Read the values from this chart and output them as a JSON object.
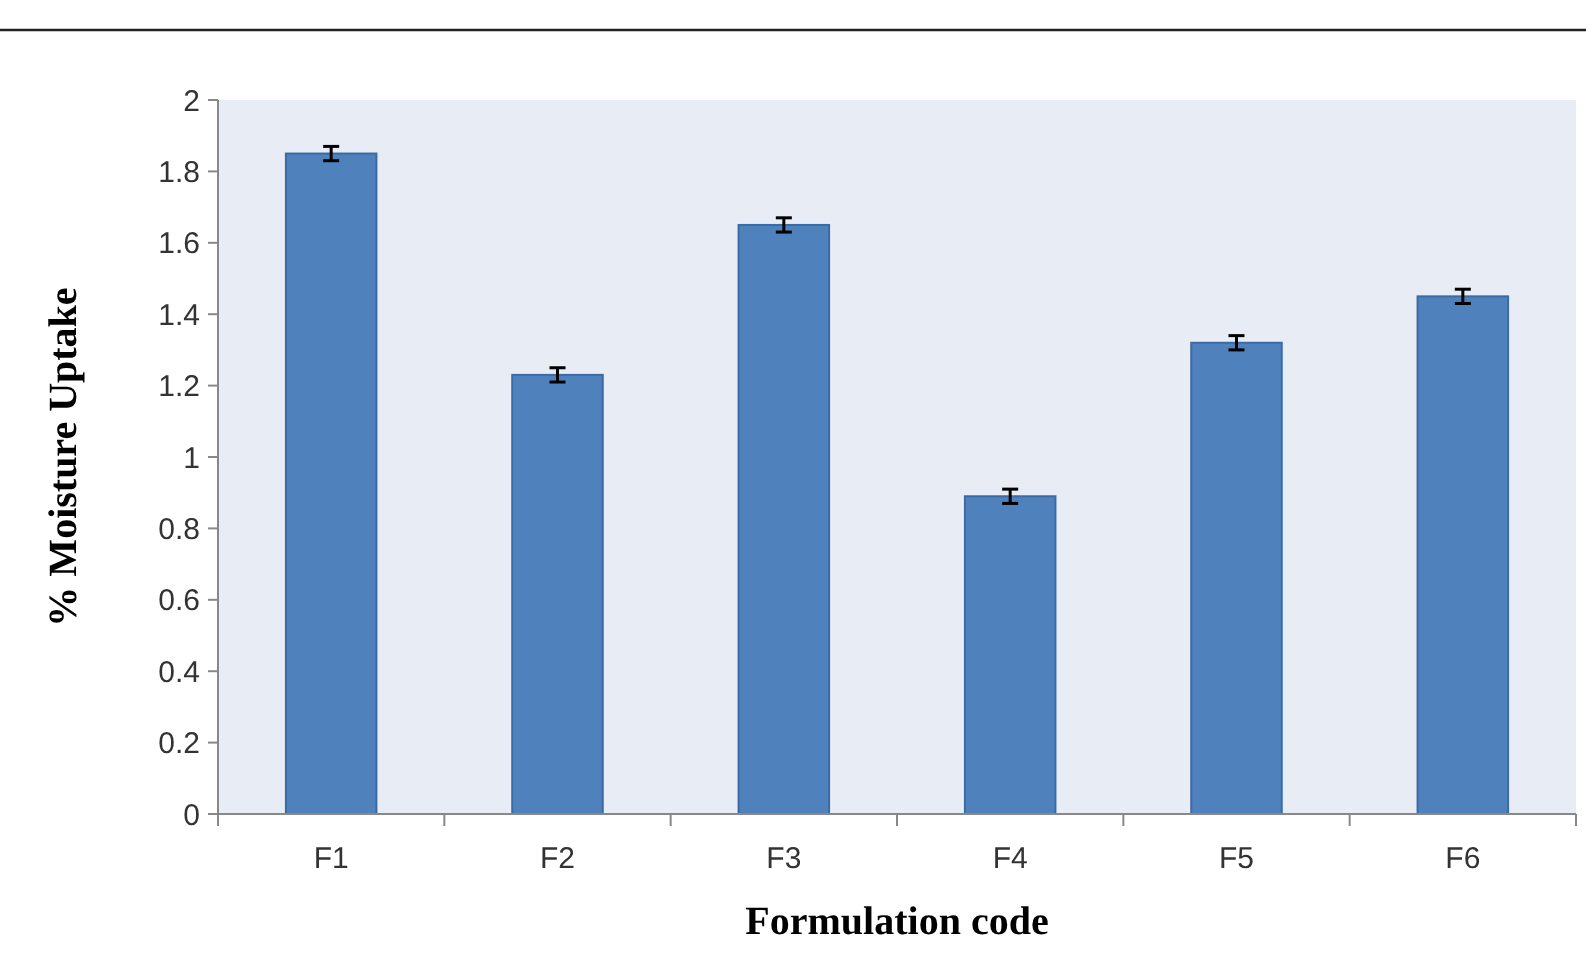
{
  "chart_data": {
    "type": "bar",
    "xlabel": "Formulation code",
    "ylabel": "% Moisture Uptake",
    "categories": [
      "F1",
      "F2",
      "F3",
      "F4",
      "F5",
      "F6"
    ],
    "values": [
      1.85,
      1.23,
      1.65,
      0.89,
      1.32,
      1.45
    ],
    "errors": [
      0.02,
      0.02,
      0.02,
      0.02,
      0.02,
      0.02
    ],
    "color": "#4f81bd",
    "ylim": [
      0,
      2
    ],
    "yticks": [
      0,
      {
        "value": 0.2,
        "label": "0.2"
      },
      {
        "value": 0.4,
        "label": "0.4"
      },
      {
        "value": 0.6,
        "label": "0.6"
      },
      {
        "value": 0.8,
        "label": "0.8"
      },
      1,
      {
        "value": 1.2,
        "label": "1.2"
      },
      {
        "value": 1.4,
        "label": "1.4"
      },
      {
        "value": 1.6,
        "label": "1.6"
      },
      {
        "value": 1.8,
        "label": "1.8"
      },
      2
    ],
    "grid": false
  }
}
